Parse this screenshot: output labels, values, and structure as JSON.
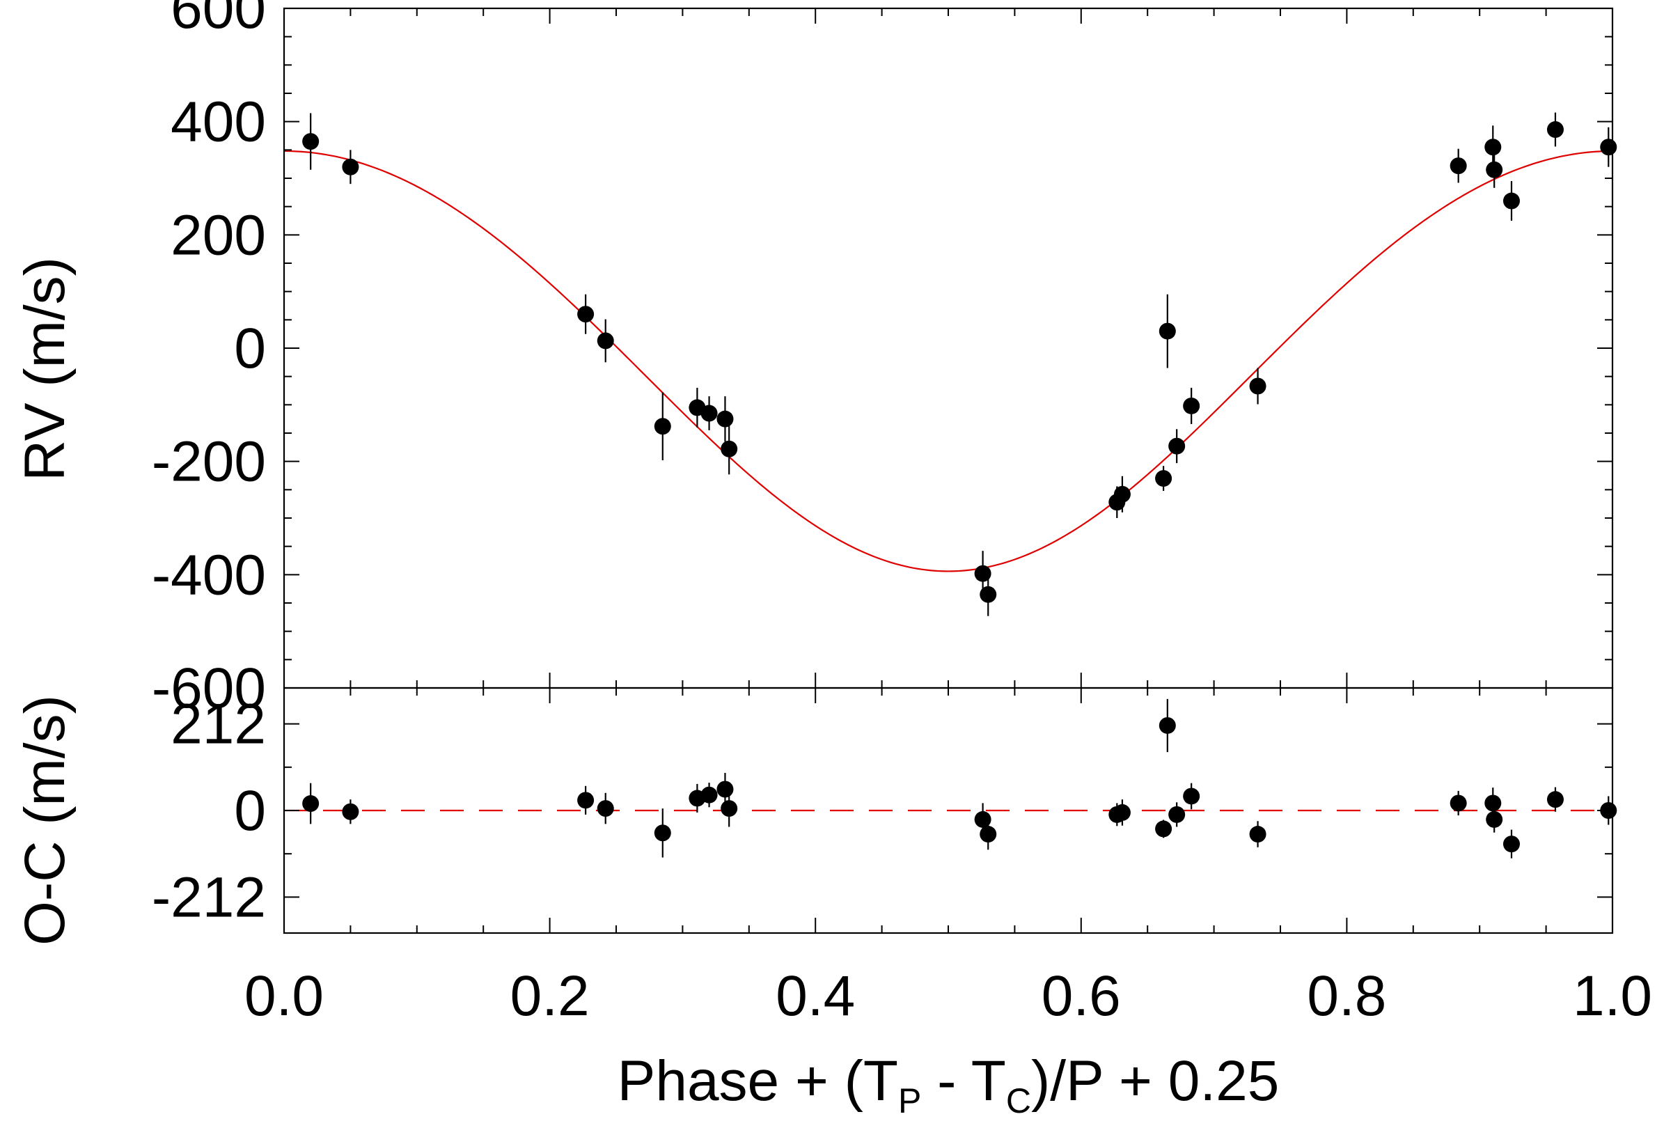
{
  "chart_data": [
    {
      "type": "scatter",
      "panel": "top",
      "ylabel": "RV (m/s)",
      "xlim": [
        0.0,
        1.0
      ],
      "ylim": [
        -600,
        600
      ],
      "yticks": [
        600,
        400,
        200,
        0,
        -200,
        -400,
        -600
      ],
      "ytick_labels": [
        "600",
        "400",
        "200",
        "0",
        "-200",
        "-400",
        "-600"
      ],
      "model_color": "#e00000",
      "marker_color": "#000000",
      "model": {
        "type": "keplerian",
        "K": 371,
        "center": -10,
        "ecc": 0.035,
        "peri_phase": 0.5
      },
      "points": [
        {
          "x": 0.02,
          "y": 365,
          "err": 50
        },
        {
          "x": 0.05,
          "y": 320,
          "err": 30
        },
        {
          "x": 0.227,
          "y": 60,
          "err": 35
        },
        {
          "x": 0.242,
          "y": 13,
          "err": 38
        },
        {
          "x": 0.285,
          "y": -138,
          "err": 60
        },
        {
          "x": 0.311,
          "y": -105,
          "err": 35
        },
        {
          "x": 0.32,
          "y": -115,
          "err": 30
        },
        {
          "x": 0.332,
          "y": -125,
          "err": 40
        },
        {
          "x": 0.335,
          "y": -178,
          "err": 45
        },
        {
          "x": 0.526,
          "y": -398,
          "err": 40
        },
        {
          "x": 0.53,
          "y": -435,
          "err": 38
        },
        {
          "x": 0.627,
          "y": -272,
          "err": 28
        },
        {
          "x": 0.631,
          "y": -258,
          "err": 32
        },
        {
          "x": 0.662,
          "y": -230,
          "err": 22
        },
        {
          "x": 0.665,
          "y": 30,
          "err": 65
        },
        {
          "x": 0.672,
          "y": -173,
          "err": 30
        },
        {
          "x": 0.683,
          "y": -102,
          "err": 32
        },
        {
          "x": 0.733,
          "y": -67,
          "err": 32
        },
        {
          "x": 0.884,
          "y": 322,
          "err": 30
        },
        {
          "x": 0.91,
          "y": 355,
          "err": 38
        },
        {
          "x": 0.911,
          "y": 315,
          "err": 32
        },
        {
          "x": 0.924,
          "y": 260,
          "err": 35
        },
        {
          "x": 0.957,
          "y": 386,
          "err": 30
        },
        {
          "x": 0.997,
          "y": 355,
          "err": 35
        }
      ]
    },
    {
      "type": "scatter",
      "panel": "bottom",
      "ylabel": "O-C (m/s)",
      "xlabel_parts": [
        "Phase + (T",
        "P",
        " - T",
        "C",
        ")/P + 0.25"
      ],
      "xlim": [
        0.0,
        1.0
      ],
      "ylim": [
        -300,
        300
      ],
      "yticks": [
        212,
        0,
        -212
      ],
      "ytick_labels": [
        "212",
        "0",
        "-212"
      ],
      "xticks": [
        0.0,
        0.2,
        0.4,
        0.6,
        0.8,
        1.0
      ],
      "xtick_labels": [
        "0.0",
        "0.2",
        "0.4",
        "0.6",
        "0.8",
        "1.0"
      ],
      "zero_line_color": "#e00000",
      "points": [
        {
          "x": 0.02,
          "y": 17,
          "err": 50
        },
        {
          "x": 0.05,
          "y": -3,
          "err": 30
        },
        {
          "x": 0.227,
          "y": 25,
          "err": 35
        },
        {
          "x": 0.242,
          "y": 5,
          "err": 38
        },
        {
          "x": 0.285,
          "y": -55,
          "err": 60
        },
        {
          "x": 0.311,
          "y": 30,
          "err": 35
        },
        {
          "x": 0.32,
          "y": 38,
          "err": 30
        },
        {
          "x": 0.332,
          "y": 52,
          "err": 40
        },
        {
          "x": 0.335,
          "y": 5,
          "err": 45
        },
        {
          "x": 0.526,
          "y": -22,
          "err": 40
        },
        {
          "x": 0.53,
          "y": -58,
          "err": 38
        },
        {
          "x": 0.627,
          "y": -10,
          "err": 28
        },
        {
          "x": 0.631,
          "y": -5,
          "err": 32
        },
        {
          "x": 0.662,
          "y": -45,
          "err": 22
        },
        {
          "x": 0.665,
          "y": 208,
          "err": 65
        },
        {
          "x": 0.672,
          "y": -10,
          "err": 30
        },
        {
          "x": 0.683,
          "y": 35,
          "err": 32
        },
        {
          "x": 0.733,
          "y": -58,
          "err": 32
        },
        {
          "x": 0.884,
          "y": 18,
          "err": 30
        },
        {
          "x": 0.91,
          "y": 18,
          "err": 38
        },
        {
          "x": 0.911,
          "y": -22,
          "err": 32
        },
        {
          "x": 0.924,
          "y": -82,
          "err": 35
        },
        {
          "x": 0.957,
          "y": 27,
          "err": 30
        },
        {
          "x": 0.997,
          "y": 0,
          "err": 35
        }
      ]
    }
  ]
}
